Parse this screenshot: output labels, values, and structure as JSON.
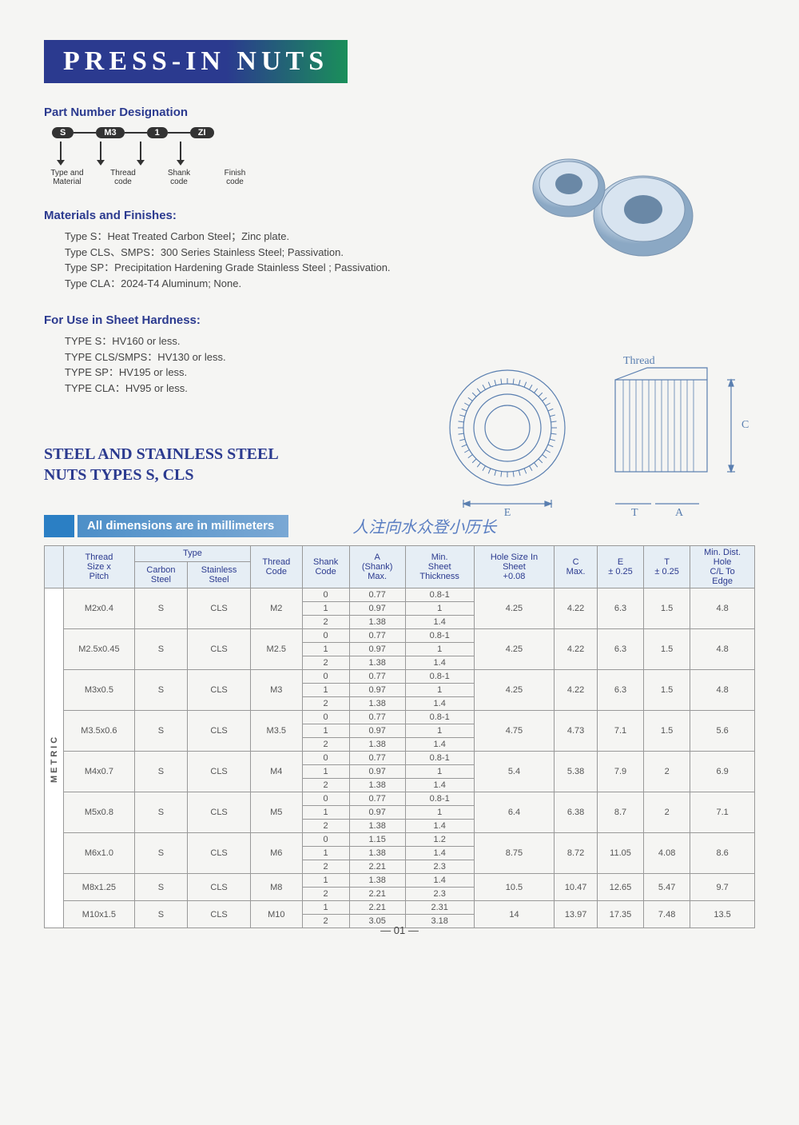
{
  "title": "PRESS-IN NUTS",
  "part_number": {
    "heading": "Part Number Designation",
    "pills": [
      "S",
      "M3",
      "1",
      "ZI"
    ],
    "labels": [
      "Type and\nMaterial",
      "Thread\ncode",
      "Shank\ncode",
      "Finish\ncode"
    ]
  },
  "materials": {
    "heading": "Materials and Finishes:",
    "lines": [
      "Type S：Heat Treated Carbon Steel；Zinc plate.",
      "Type CLS、SMPS：300 Series Stainless Steel; Passivation.",
      "Type SP：Precipitation Hardening Grade Stainless Steel ; Passivation.",
      "Type CLA：2024-T4 Aluminum; None."
    ]
  },
  "hardness": {
    "heading": "For Use in Sheet Hardness:",
    "lines": [
      "TYPE S：HV160 or less.",
      "TYPE CLS/SMPS：HV130 or less.",
      "TYPE SP：HV195 or less.",
      "TYPE CLA：HV95 or less."
    ]
  },
  "subsection": "STEEL AND STAINLESS STEEL\nNUTS  TYPES S, CLS",
  "dims_banner": "All dimensions are in millimeters",
  "handwriting": "人注向水众登小历长",
  "diagram_labels": {
    "thread": "Thread",
    "E": "E",
    "C": "C",
    "T": "T",
    "A": "A"
  },
  "table": {
    "side_label": "METRIC",
    "headers": {
      "thread_size": "Thread\nSize x\nPitch",
      "type": "Type",
      "carbon": "Carbon\nSteel",
      "stainless": "Stainless\nSteel",
      "thread_code": "Thread\nCode",
      "shank_code": "Shank\nCode",
      "a_shank": "A\n(Shank)\nMax.",
      "min_sheet": "Min.\nSheet\nThickness",
      "hole_size": "Hole Size In\nSheet\n+0.08",
      "c_max": "C\nMax.",
      "e_tol": "E\n± 0.25",
      "t_tol": "T\n± 0.25",
      "min_dist": "Min. Dist.\nHole\nC/L To\nEdge"
    },
    "groups": [
      {
        "thread": "M2x0.4",
        "carbon": "S",
        "stainless": "CLS",
        "code": "M2",
        "shanks": [
          [
            "0",
            "0.77",
            "0.8-1"
          ],
          [
            "1",
            "0.97",
            "1"
          ],
          [
            "2",
            "1.38",
            "1.4"
          ]
        ],
        "hole": "4.25",
        "c": "4.22",
        "e": "6.3",
        "t": "1.5",
        "dist": "4.8"
      },
      {
        "thread": "M2.5x0.45",
        "carbon": "S",
        "stainless": "CLS",
        "code": "M2.5",
        "shanks": [
          [
            "0",
            "0.77",
            "0.8-1"
          ],
          [
            "1",
            "0.97",
            "1"
          ],
          [
            "2",
            "1.38",
            "1.4"
          ]
        ],
        "hole": "4.25",
        "c": "4.22",
        "e": "6.3",
        "t": "1.5",
        "dist": "4.8"
      },
      {
        "thread": "M3x0.5",
        "carbon": "S",
        "stainless": "CLS",
        "code": "M3",
        "shanks": [
          [
            "0",
            "0.77",
            "0.8-1"
          ],
          [
            "1",
            "0.97",
            "1"
          ],
          [
            "2",
            "1.38",
            "1.4"
          ]
        ],
        "hole": "4.25",
        "c": "4.22",
        "e": "6.3",
        "t": "1.5",
        "dist": "4.8"
      },
      {
        "thread": "M3.5x0.6",
        "carbon": "S",
        "stainless": "CLS",
        "code": "M3.5",
        "shanks": [
          [
            "0",
            "0.77",
            "0.8-1"
          ],
          [
            "1",
            "0.97",
            "1"
          ],
          [
            "2",
            "1.38",
            "1.4"
          ]
        ],
        "hole": "4.75",
        "c": "4.73",
        "e": "7.1",
        "t": "1.5",
        "dist": "5.6"
      },
      {
        "thread": "M4x0.7",
        "carbon": "S",
        "stainless": "CLS",
        "code": "M4",
        "shanks": [
          [
            "0",
            "0.77",
            "0.8-1"
          ],
          [
            "1",
            "0.97",
            "1"
          ],
          [
            "2",
            "1.38",
            "1.4"
          ]
        ],
        "hole": "5.4",
        "c": "5.38",
        "e": "7.9",
        "t": "2",
        "dist": "6.9"
      },
      {
        "thread": "M5x0.8",
        "carbon": "S",
        "stainless": "CLS",
        "code": "M5",
        "shanks": [
          [
            "0",
            "0.77",
            "0.8-1"
          ],
          [
            "1",
            "0.97",
            "1"
          ],
          [
            "2",
            "1.38",
            "1.4"
          ]
        ],
        "hole": "6.4",
        "c": "6.38",
        "e": "8.7",
        "t": "2",
        "dist": "7.1"
      },
      {
        "thread": "M6x1.0",
        "carbon": "S",
        "stainless": "CLS",
        "code": "M6",
        "shanks": [
          [
            "0",
            "1.15",
            "1.2"
          ],
          [
            "1",
            "1.38",
            "1.4"
          ],
          [
            "2",
            "2.21",
            "2.3"
          ]
        ],
        "hole": "8.75",
        "c": "8.72",
        "e": "11.05",
        "t": "4.08",
        "dist": "8.6"
      },
      {
        "thread": "M8x1.25",
        "carbon": "S",
        "stainless": "CLS",
        "code": "M8",
        "shanks": [
          [
            "1",
            "1.38",
            "1.4"
          ],
          [
            "2",
            "2.21",
            "2.3"
          ]
        ],
        "hole": "10.5",
        "c": "10.47",
        "e": "12.65",
        "t": "5.47",
        "dist": "9.7"
      },
      {
        "thread": "M10x1.5",
        "carbon": "S",
        "stainless": "CLS",
        "code": "M10",
        "shanks": [
          [
            "1",
            "2.21",
            "2.31"
          ],
          [
            "2",
            "3.05",
            "3.18"
          ]
        ],
        "hole": "14",
        "c": "13.97",
        "e": "17.35",
        "t": "7.48",
        "dist": "13.5"
      }
    ]
  },
  "page_num": "— 01 —",
  "colors": {
    "primary_blue": "#2b3a8f",
    "banner_green": "#1a8f5a",
    "table_header_bg": "#e6eef5",
    "accent_blue": "#2b7fc4"
  }
}
